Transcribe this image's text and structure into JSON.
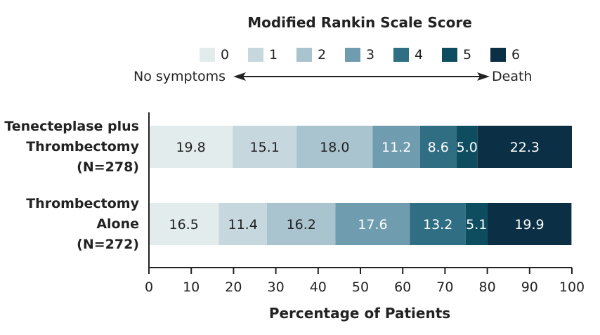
{
  "chart_data": {
    "type": "bar",
    "stacked": true,
    "orientation": "horizontal",
    "legend_title": "Modified Rankin Scale Score",
    "scale_left": "No symptoms",
    "scale_right": "Death",
    "xlabel": "Percentage of Patients",
    "xlim": [
      0,
      100
    ],
    "xticks": [
      "0",
      "10",
      "20",
      "30",
      "40",
      "50",
      "60",
      "70",
      "80",
      "90",
      "100"
    ],
    "categories": [
      [
        "Tenecteplase plus",
        "Thrombectomy",
        "(N=278)"
      ],
      [
        "Thrombectomy",
        "Alone",
        "(N=272)"
      ]
    ],
    "series": [
      {
        "name": "0",
        "color": "#e3eced",
        "values": [
          19.8,
          16.5
        ]
      },
      {
        "name": "1",
        "color": "#c6d8de",
        "values": [
          15.1,
          11.4
        ]
      },
      {
        "name": "2",
        "color": "#a9c3cf",
        "values": [
          18.0,
          16.2
        ]
      },
      {
        "name": "3",
        "color": "#6f9cae",
        "values": [
          11.2,
          17.6
        ]
      },
      {
        "name": "4",
        "color": "#2f6e83",
        "values": [
          8.6,
          13.2
        ]
      },
      {
        "name": "5",
        "color": "#0e4d60",
        "values": [
          5.0,
          5.1
        ]
      },
      {
        "name": "6",
        "color": "#0b2f44",
        "values": [
          22.3,
          19.9
        ]
      }
    ],
    "value_labels": [
      [
        "19.8",
        "15.1",
        "18.0",
        "11.2",
        "8.6",
        "5.0",
        "22.3"
      ],
      [
        "16.5",
        "11.4",
        "16.2",
        "17.6",
        "13.2",
        "5.1",
        "19.9"
      ]
    ],
    "label_colors": [
      "#222222",
      "#222222",
      "#222222",
      "#ffffff",
      "#ffffff",
      "#ffffff",
      "#ffffff"
    ]
  }
}
